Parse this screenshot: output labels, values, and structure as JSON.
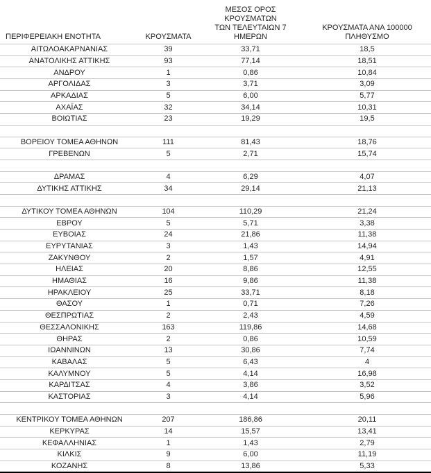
{
  "table": {
    "headers": {
      "region": "ΠΕΡΙΦΕΡΕΙΑΚΗ ΕΝΟΤΗΤΑ",
      "cases": "ΚΡΟΥΣΜΑΤΑ",
      "avg7": "ΜΕΣΟΣ ΟΡΟΣ ΚΡΟΥΣΜΑΤΩΝ\nΤΩΝ ΤΕΛΕΥΤΑΙΩΝ 7\nΗΜΕΡΩΝ",
      "per100k": "ΚΡΟΥΣΜΑΤΑ ΑΝΑ 100000\nΠΛΗΘΥΣΜΟ"
    },
    "spacer_after": [
      "ΒΟΙΩΤΙΑΣ",
      "ΓΡΕΒΕΝΩΝ",
      "ΔΥΤΙΚΗΣ ΑΤΤΙΚΗΣ",
      "ΚΑΣΤΟΡΙΑΣ"
    ],
    "border_color": "#c4c4c4",
    "bottom_border_color": "#000000"
  },
  "chart_data": {
    "type": "table",
    "columns": [
      "ΠΕΡΙΦΕΡΕΙΑΚΗ ΕΝΟΤΗΤΑ",
      "ΚΡΟΥΣΜΑΤΑ",
      "ΜΕΣΟΣ ΟΡΟΣ ΚΡΟΥΣΜΑΤΩΝ ΤΩΝ ΤΕΛΕΥΤΑΙΩΝ 7 ΗΜΕΡΩΝ",
      "ΚΡΟΥΣΜΑΤΑ ΑΝΑ 100000 ΠΛΗΘΥΣΜΟ"
    ],
    "rows": [
      [
        "ΑΙΤΩΛΟΑΚΑΡΝΑΝΙΑΣ",
        "39",
        "33,71",
        "18,5"
      ],
      [
        "ΑΝΑΤΟΛΙΚΗΣ ΑΤΤΙΚΗΣ",
        "93",
        "77,14",
        "18,51"
      ],
      [
        "ΑΝΔΡΟΥ",
        "1",
        "0,86",
        "10,84"
      ],
      [
        "ΑΡΓΟΛΙΔΑΣ",
        "3",
        "3,71",
        "3,09"
      ],
      [
        "ΑΡΚΑΔΙΑΣ",
        "5",
        "6,00",
        "5,77"
      ],
      [
        "ΑΧΑΪΑΣ",
        "32",
        "34,14",
        "10,31"
      ],
      [
        "ΒΟΙΩΤΙΑΣ",
        "23",
        "19,29",
        "19,5"
      ],
      [
        "ΒΟΡΕΙΟΥ ΤΟΜΕΑ ΑΘΗΝΩΝ",
        "111",
        "81,43",
        "18,76"
      ],
      [
        "ΓΡΕΒΕΝΩΝ",
        "5",
        "2,71",
        "15,74"
      ],
      [
        "ΔΡΑΜΑΣ",
        "4",
        "6,29",
        "4,07"
      ],
      [
        "ΔΥΤΙΚΗΣ ΑΤΤΙΚΗΣ",
        "34",
        "29,14",
        "21,13"
      ],
      [
        "ΔΥΤΙΚΟΥ ΤΟΜΕΑ ΑΘΗΝΩΝ",
        "104",
        "110,29",
        "21,24"
      ],
      [
        "ΕΒΡΟΥ",
        "5",
        "5,71",
        "3,38"
      ],
      [
        "ΕΥΒΟΙΑΣ",
        "24",
        "21,86",
        "11,38"
      ],
      [
        "ΕΥΡΥΤΑΝΙΑΣ",
        "3",
        "1,43",
        "14,94"
      ],
      [
        "ΖΑΚΥΝΘΟΥ",
        "2",
        "1,57",
        "4,91"
      ],
      [
        "ΗΛΕΙΑΣ",
        "20",
        "8,86",
        "12,55"
      ],
      [
        "ΗΜΑΘΙΑΣ",
        "16",
        "9,86",
        "11,38"
      ],
      [
        "ΗΡΑΚΛΕΙΟΥ",
        "25",
        "33,71",
        "8,18"
      ],
      [
        "ΘΑΣΟΥ",
        "1",
        "0,71",
        "7,26"
      ],
      [
        "ΘΕΣΠΡΩΤΙΑΣ",
        "2",
        "2,43",
        "4,59"
      ],
      [
        "ΘΕΣΣΑΛΟΝΙΚΗΣ",
        "163",
        "119,86",
        "14,68"
      ],
      [
        "ΘΗΡΑΣ",
        "2",
        "0,86",
        "10,59"
      ],
      [
        "ΙΩΑΝΝΙΝΩΝ",
        "13",
        "30,86",
        "7,74"
      ],
      [
        "ΚΑΒΑΛΑΣ",
        "5",
        "6,43",
        "4"
      ],
      [
        "ΚΑΛΥΜΝΟΥ",
        "5",
        "4,14",
        "16,98"
      ],
      [
        "ΚΑΡΔΙΤΣΑΣ",
        "4",
        "3,86",
        "3,52"
      ],
      [
        "ΚΑΣΤΟΡΙΑΣ",
        "3",
        "4,14",
        "5,96"
      ],
      [
        "ΚΕΝΤΡΙΚΟΥ ΤΟΜΕΑ ΑΘΗΝΩΝ",
        "207",
        "186,86",
        "20,11"
      ],
      [
        "ΚΕΡΚΥΡΑΣ",
        "14",
        "15,57",
        "13,41"
      ],
      [
        "ΚΕΦΑΛΛΗΝΙΑΣ",
        "1",
        "1,43",
        "2,79"
      ],
      [
        "ΚΙΛΚΙΣ",
        "9",
        "6,00",
        "11,19"
      ],
      [
        "ΚΟΖΑΝΗΣ",
        "8",
        "13,86",
        "5,33"
      ]
    ]
  }
}
